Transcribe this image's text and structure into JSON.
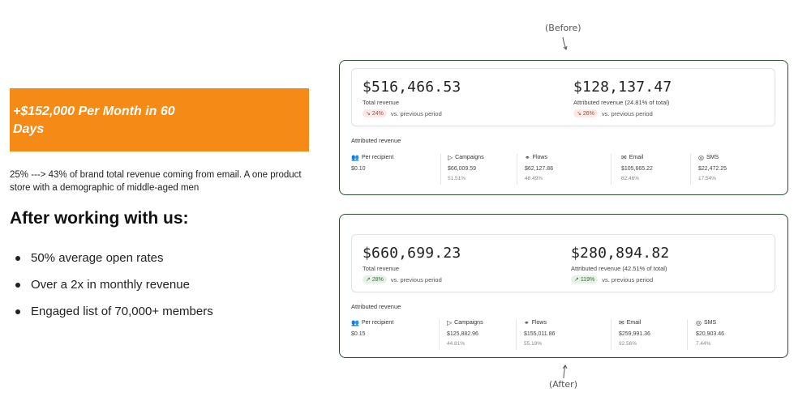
{
  "left": {
    "banner": "+$152,000 Per Month in 60 Days",
    "description": "25% ---> 43% of brand total revenue coming from email. A one product store with a demographic of middle-aged men",
    "after_heading": "After working with us:",
    "bullets": [
      "50% average open rates",
      "Over a 2x in monthly revenue",
      "Engaged list of 70,000+ members"
    ]
  },
  "annotations": {
    "before": "(Before)",
    "after": "(After)"
  },
  "before": {
    "total_revenue": {
      "value": "$516,466.53",
      "label": "Total revenue",
      "badge": "24%",
      "compare": "vs. previous period"
    },
    "attributed": {
      "value": "$128,137.47",
      "label": "Attributed revenue (24.81% of total)",
      "badge": "26%",
      "compare": "vs. previous period"
    },
    "section_title": "Attributed revenue",
    "columns": [
      {
        "name": "Per recipient",
        "icon": "people-icon",
        "value": "$0.10",
        "pct": ""
      },
      {
        "name": "Campaigns",
        "icon": "play-icon",
        "value": "$66,009.59",
        "pct": "51.51%"
      },
      {
        "name": "Flows",
        "icon": "flows-icon",
        "value": "$62,127.88",
        "pct": "48.49%"
      },
      {
        "name": "Email",
        "icon": "mail-icon",
        "value": "$105,665.22",
        "pct": "82.46%"
      },
      {
        "name": "SMS",
        "icon": "sms-icon",
        "value": "$22,472.25",
        "pct": "17.54%"
      }
    ]
  },
  "after": {
    "total_revenue": {
      "value": "$660,699.23",
      "label": "Total revenue",
      "badge": "28%",
      "compare": "vs. previous period"
    },
    "attributed": {
      "value": "$280,894.82",
      "label": "Attributed revenue (42.51% of total)",
      "badge": "119%",
      "compare": "vs. previous period"
    },
    "section_title": "Attributed revenue",
    "columns": [
      {
        "name": "Per recipient",
        "icon": "people-icon",
        "value": "$0.15",
        "pct": ""
      },
      {
        "name": "Campaigns",
        "icon": "play-icon",
        "value": "$125,882.96",
        "pct": "44.81%"
      },
      {
        "name": "Flows",
        "icon": "flows-icon",
        "value": "$155,011.86",
        "pct": "55.19%"
      },
      {
        "name": "Email",
        "icon": "mail-icon",
        "value": "$259,991.36",
        "pct": "92.56%"
      },
      {
        "name": "SMS",
        "icon": "sms-icon",
        "value": "$20,903.46",
        "pct": "7.44%"
      }
    ]
  },
  "colors": {
    "banner": "#f58a16",
    "card_border": "#2f4a31",
    "down_badge": "#fde9e7",
    "up_badge": "#e7f1e7"
  }
}
